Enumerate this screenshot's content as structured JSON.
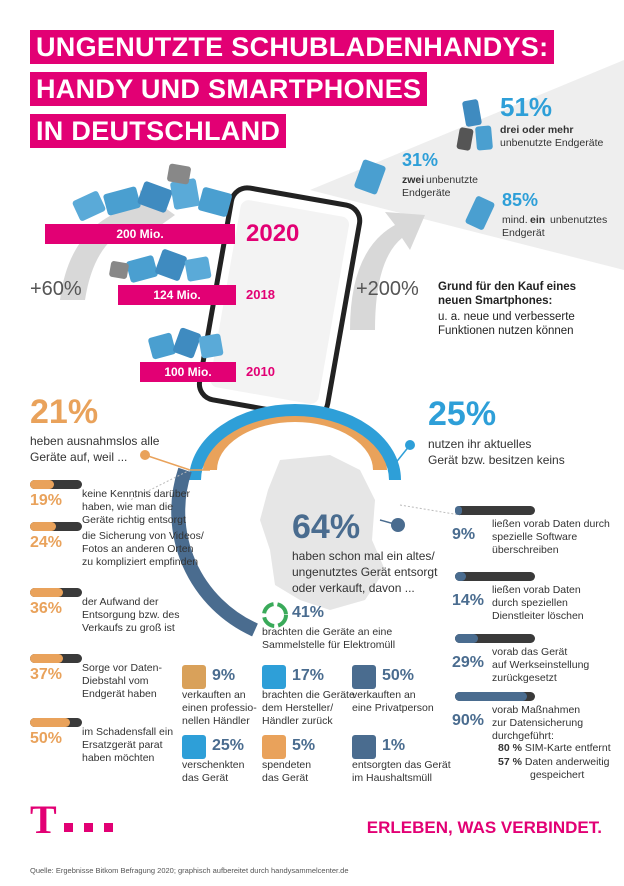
{
  "title": {
    "line1": "UNGENUTZTE SCHUBLADENHANDYS:",
    "line2": "HANDY UND SMARTPHONES",
    "line3": "IN DEUTSCHLAND"
  },
  "ownership": [
    {
      "pct": "51%",
      "text_bold": "drei oder mehr",
      "text": "unbenutzte Endgeräte"
    },
    {
      "pct": "31%",
      "text_bold": "zwei",
      "text": "unbenutzte Endgeräte"
    },
    {
      "pct": "85%",
      "text_pre": "mind.",
      "text_bold": "ein",
      "text": "unbenutztes Endgerät"
    }
  ],
  "timeline": [
    {
      "label": "200 Mio.",
      "year": "2020"
    },
    {
      "label": "124 Mio.",
      "year": "2018"
    },
    {
      "label": "100 Mio.",
      "year": "2010"
    }
  ],
  "growth_left": "+60%",
  "growth_right": "+200%",
  "reason": {
    "title_l1": "Grund für den Kauf eines",
    "title_l2": "neuen Smartphones:",
    "text_l1": "u. a. neue und verbesserte",
    "text_l2": "Funktionen nutzen können"
  },
  "keep_all": {
    "pct": "21%",
    "l1": "heben ausnahmslos alle",
    "l2": "Geräte auf, weil ..."
  },
  "use_current": {
    "pct": "25%",
    "l1": "nutzen ihr aktuelles",
    "l2": "Gerät bzw. besitzen keins"
  },
  "disposed": {
    "pct": "64%",
    "l1": "haben schon mal ein altes/",
    "l2": "ungenutztes Gerät entsorgt",
    "l3": "oder verkauft, davon ..."
  },
  "reasons_left": [
    {
      "pct": "19%",
      "value": 19,
      "l1": "keine Kenntnis darüber",
      "l2": "haben, wie man die",
      "l3": "Geräte richtig entsorgt"
    },
    {
      "pct": "24%",
      "value": 24,
      "l1": "die Sicherung von Videos/",
      "l2": "Fotos an anderen Orten",
      "l3": "zu kompliziert empfinden"
    },
    {
      "pct": "36%",
      "value": 36,
      "l1": "der Aufwand der",
      "l2": "Entsorgung bzw. des",
      "l3": "Verkaufs zu groß ist"
    },
    {
      "pct": "37%",
      "value": 37,
      "l1": "Sorge vor Daten-",
      "l2": "Diebstahl vom",
      "l3": "Endgerät haben"
    },
    {
      "pct": "50%",
      "value": 50,
      "l1": "im Schadensfall ein",
      "l2": "Ersatzgerät parat",
      "l3": "haben möchten"
    }
  ],
  "data_right": [
    {
      "pct": "9%",
      "value": 9,
      "l1": "ließen vorab Daten durch",
      "l2": "spezielle Software",
      "l3": "überschreiben"
    },
    {
      "pct": "14%",
      "value": 14,
      "l1": "ließen vorab Daten",
      "l2": "durch speziellen",
      "l3": "Dienstleiter löschen"
    },
    {
      "pct": "29%",
      "value": 29,
      "l1": "vorab das Gerät",
      "l2": "auf Werkseinstellung",
      "l3": "zurückgesetzt"
    },
    {
      "pct": "90%",
      "value": 90,
      "l1": "vorab Maßnahmen",
      "l2": "zur Datensicherung",
      "l3": "durchgeführt:"
    }
  ],
  "sub_measures": [
    {
      "pct": "80 %",
      "text": "SIM-Karte entfernt"
    },
    {
      "pct": "57 %",
      "text": "Daten anderweitig"
    },
    {
      "pct": "",
      "text": "gespeichert"
    }
  ],
  "channels": [
    {
      "pct": "41%",
      "l1": "brachten die Geräte an eine",
      "l2": "Sammelstelle für Elektromüll",
      "icon": "recycle-icon"
    },
    {
      "pct": "9%",
      "l1": "verkauften an",
      "l2": "einen professio-",
      "l3": "nellen Händler",
      "icon": "box-icon"
    },
    {
      "pct": "17%",
      "l1": "brachten die Geräte",
      "l2": "dem Hersteller/",
      "l3": "Händler zurück",
      "icon": "shop-icon"
    },
    {
      "pct": "50%",
      "l1": "verkauften an",
      "l2": "eine Privatperson",
      "l3": "",
      "icon": "house-icon"
    },
    {
      "pct": "25%",
      "l1": "verschenkten",
      "l2": "das Gerät",
      "l3": "",
      "icon": "gift-icon"
    },
    {
      "pct": "5%",
      "l1": "spendeten",
      "l2": "das Gerät",
      "l3": "",
      "icon": "thumbs-up-icon"
    },
    {
      "pct": "1%",
      "l1": "entsorgten das Gerät",
      "l2": "im Haushaltsmüll",
      "l3": "",
      "icon": "trash-icon"
    }
  ],
  "brand": {
    "logo": "T",
    "slogan": "ERLEBEN, WAS VERBINDET."
  },
  "source": "Quelle: Ergebnisse Bitkom Befragung 2020; graphisch aufbereitet durch handysammelcenter.de",
  "colors": {
    "magenta": "#e20074",
    "blue": "#2e9fd8",
    "orange": "#e9a25b",
    "dark_blue": "#4a6c8f"
  }
}
